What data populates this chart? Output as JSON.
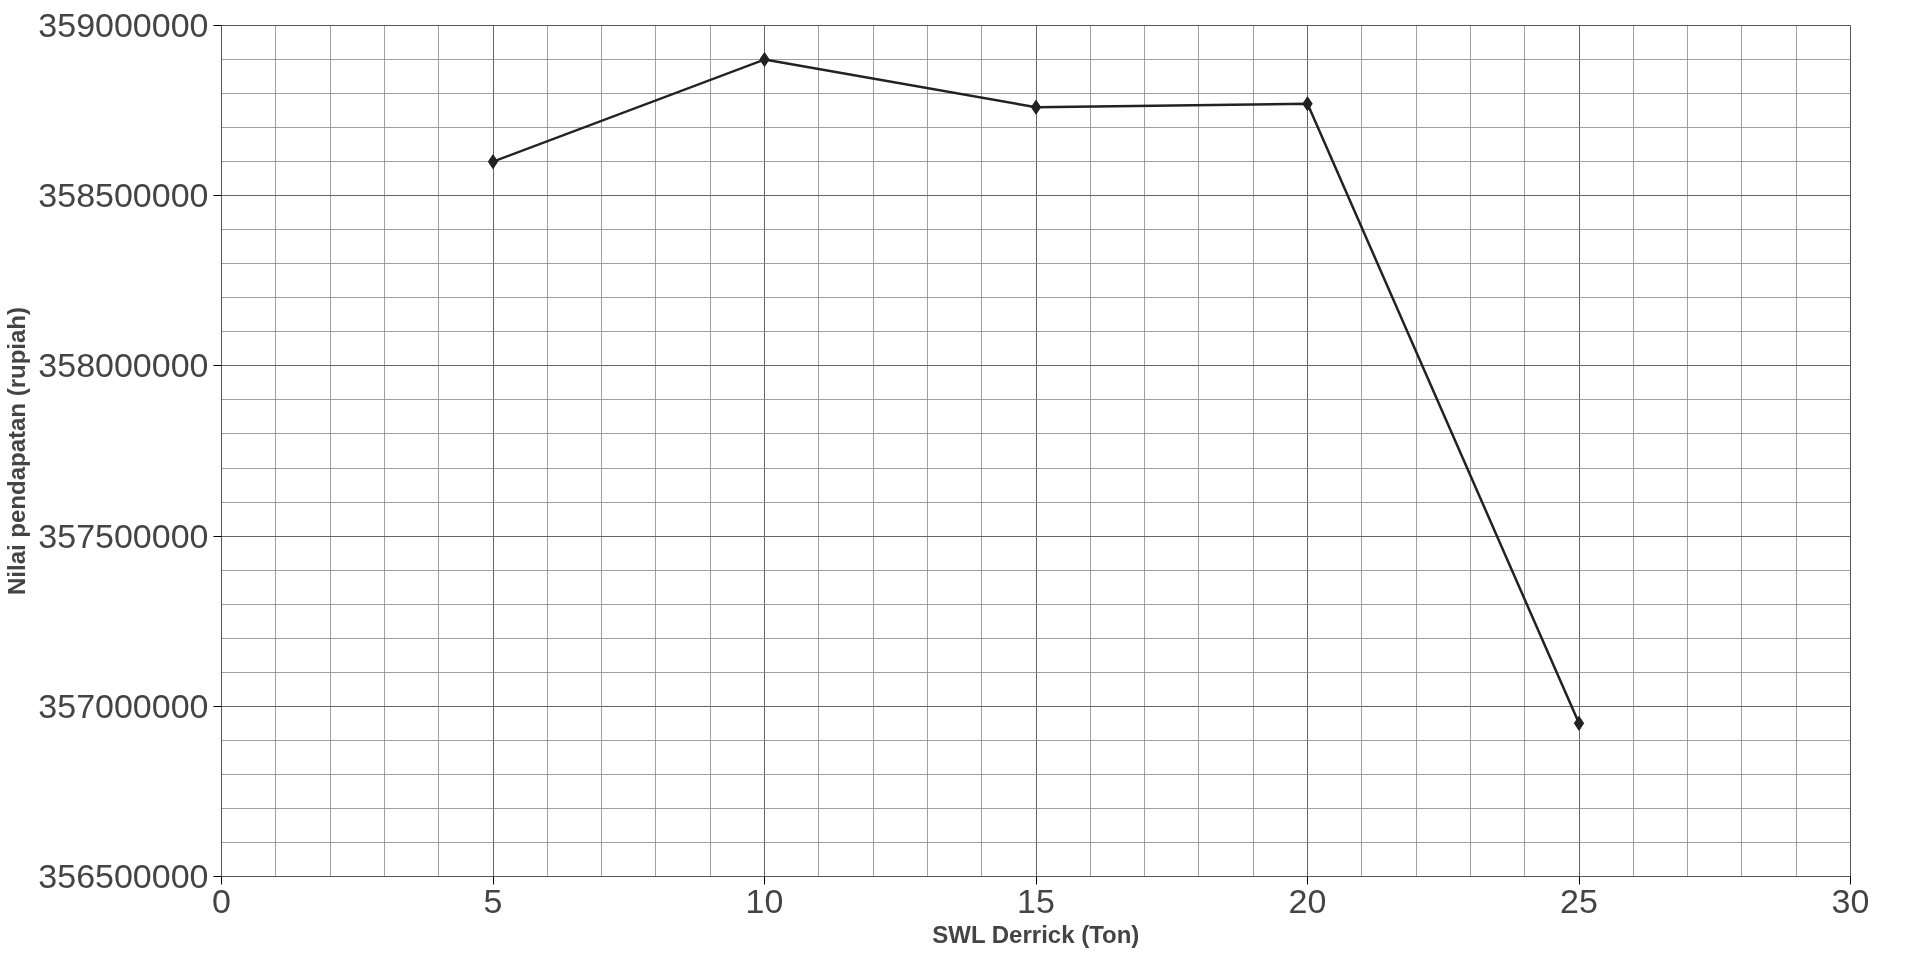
{
  "chart_data": {
    "type": "line",
    "xlabel": "SWL Derrick (Ton)",
    "ylabel": "Nilai pendapatan (rupiah)",
    "x": [
      5,
      10,
      15,
      20,
      25
    ],
    "series": [
      {
        "color": "#222222",
        "values": [
          358600000,
          358900000,
          358760000,
          358770000,
          356950000
        ]
      }
    ],
    "xlim": [
      0,
      30
    ],
    "xticks": [
      0,
      5,
      10,
      15,
      20,
      25,
      30
    ],
    "ylim": [
      356500000,
      359000000
    ],
    "yticks": [
      356500000,
      357000000,
      357500000,
      358000000,
      358500000,
      359000000
    ],
    "grid": true,
    "marker": "diamond",
    "line_style": "solid"
  }
}
